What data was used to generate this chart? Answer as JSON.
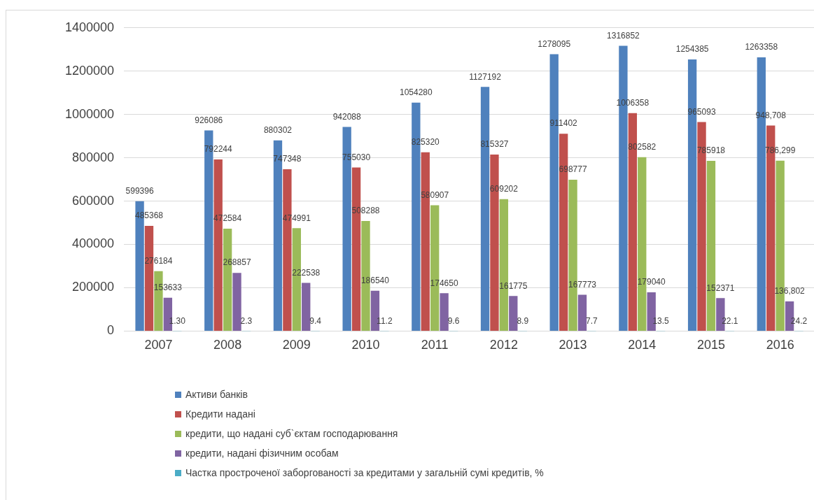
{
  "chart_data": {
    "type": "bar",
    "categories": [
      "2007",
      "2008",
      "2009",
      "2010",
      "2011",
      "2012",
      "2013",
      "2014",
      "2015",
      "2016"
    ],
    "series": [
      {
        "name": "Активи банків",
        "color": "#4f81bd",
        "values": [
          599396,
          926086,
          880302,
          942088,
          1054280,
          1127192,
          1278095,
          1316852,
          1254385,
          1263358
        ]
      },
      {
        "name": "Кредити надані",
        "color": "#c0504d",
        "values": [
          485368,
          792244,
          747348,
          755030,
          825320,
          815327,
          911402,
          1006358,
          965093,
          948708
        ],
        "value_labels": [
          "485368",
          "792244",
          "747348",
          "755030",
          "825320",
          "815327",
          "911402",
          "1006358",
          "965093",
          "948,708"
        ]
      },
      {
        "name": "кредити, що надані суб`єктам господарювання",
        "color": "#9bbb59",
        "values": [
          276184,
          472584,
          474991,
          508288,
          580907,
          609202,
          698777,
          802582,
          785918,
          786299
        ],
        "value_labels": [
          "276184",
          "472584",
          "474991",
          "508288",
          "580907",
          "609202",
          "698777",
          "802582",
          "785918",
          "786,299"
        ]
      },
      {
        "name": "кредити, надані фізичним особам",
        "color": "#8064a2",
        "values": [
          153633,
          268857,
          222538,
          186540,
          174650,
          161775,
          167773,
          179040,
          152371,
          136802
        ],
        "value_labels": [
          "153633",
          "268857",
          "222538",
          "186540",
          "174650",
          "161775",
          "167773",
          "179040",
          "152371",
          "136,802"
        ]
      },
      {
        "name": "Частка простроченої заборгованості за кредитами у загальній сумі кредитів, %",
        "color": "#4bacc6",
        "values": [
          1.3,
          2.3,
          9.4,
          11.2,
          9.6,
          8.9,
          7.7,
          13.5,
          22.1,
          24.2
        ],
        "value_labels": [
          "1.30",
          "2.3",
          "9.4",
          "11.2",
          "9.6",
          "8.9",
          "7.7",
          "13.5",
          "22.1",
          "24.2"
        ]
      }
    ],
    "data_labels": true,
    "ylim": [
      0,
      1400000
    ],
    "yticks": [
      0,
      200000,
      400000,
      600000,
      800000,
      1000000,
      1200000,
      1400000
    ],
    "grid": "y",
    "legend": "bottom"
  }
}
